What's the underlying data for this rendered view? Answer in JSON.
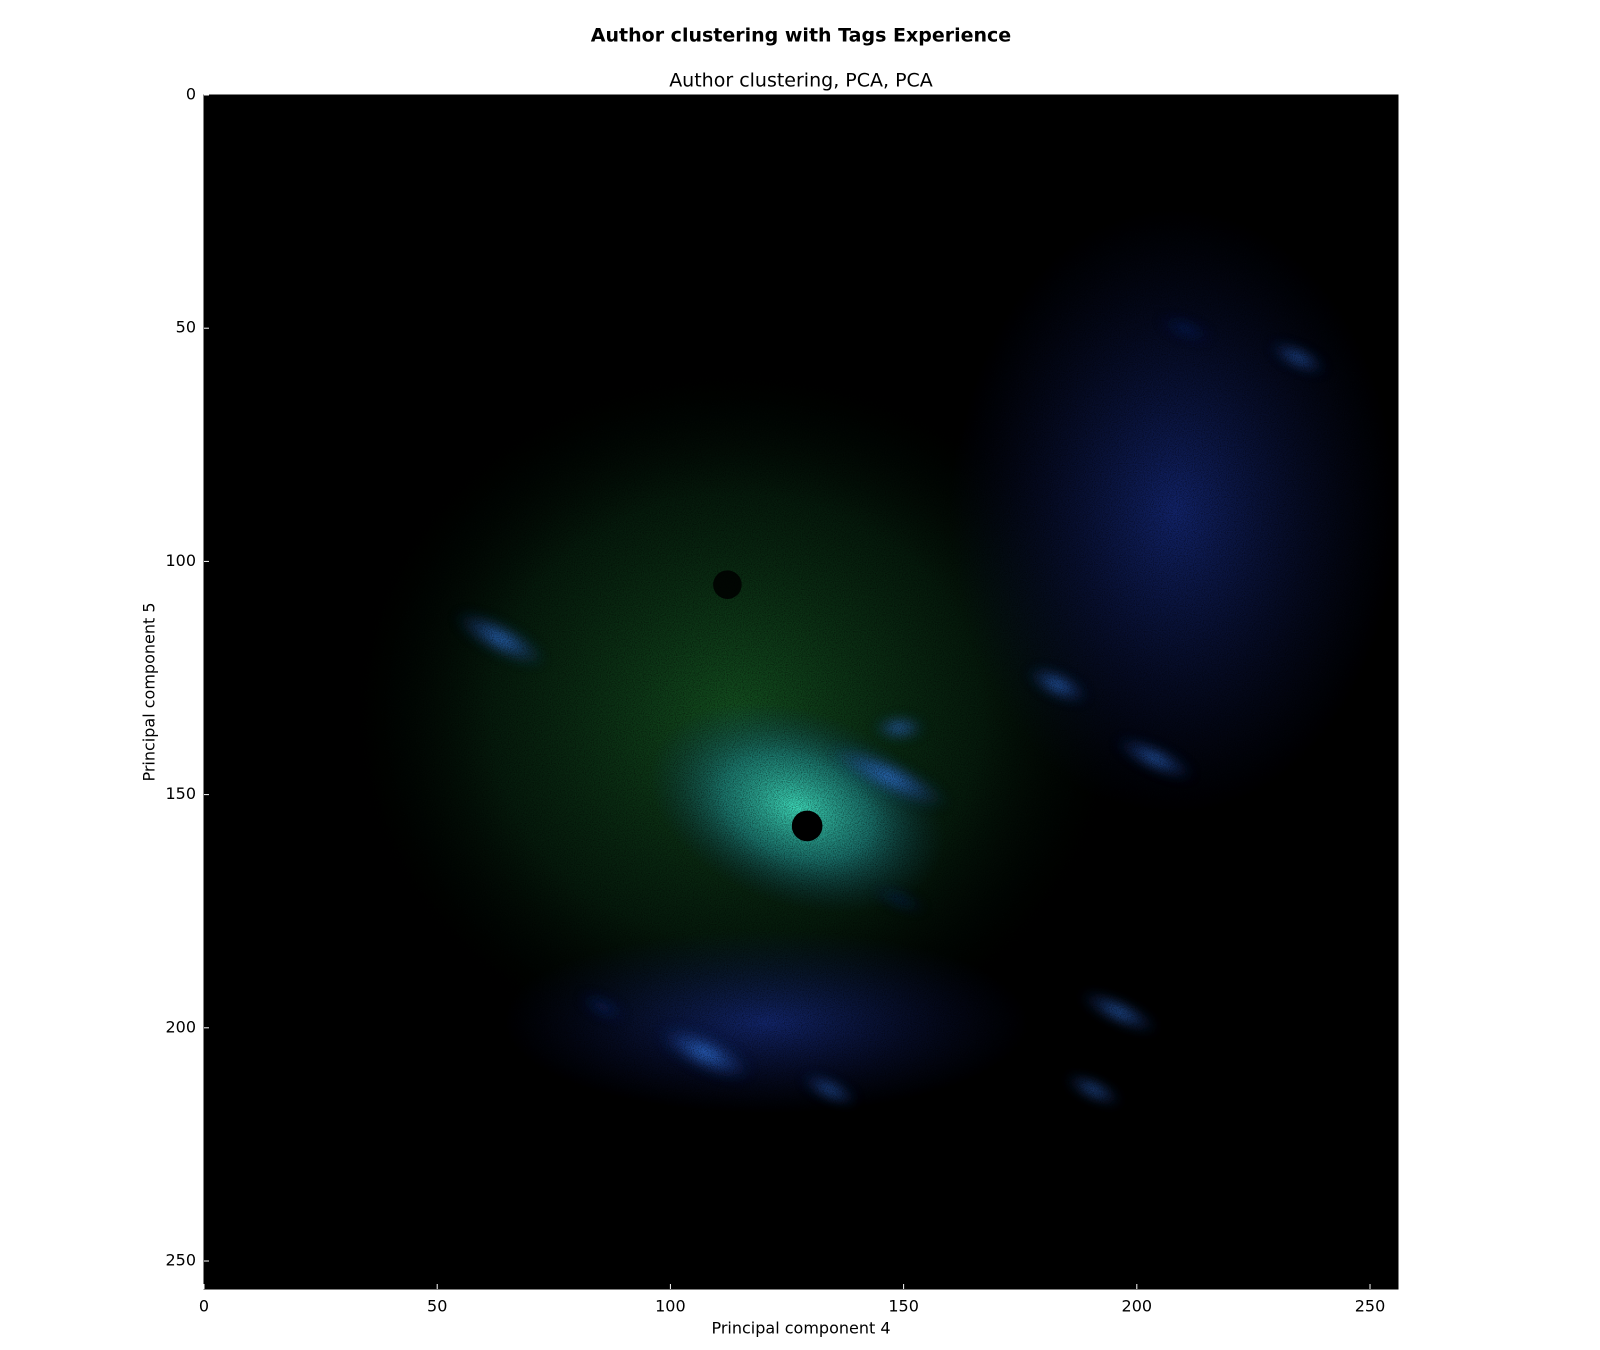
{
  "chart_data": {
    "type": "image",
    "title": "Author clustering with Tags Experience",
    "subtitle": "Author clustering, PCA, PCA",
    "xlabel": "Principal component 4",
    "ylabel": "Principal component 5",
    "xlim": [
      0,
      256
    ],
    "ylim": [
      256,
      0
    ],
    "xticks": [
      0,
      50,
      100,
      150,
      200,
      250
    ],
    "yticks": [
      0,
      50,
      100,
      150,
      200,
      250
    ]
  }
}
